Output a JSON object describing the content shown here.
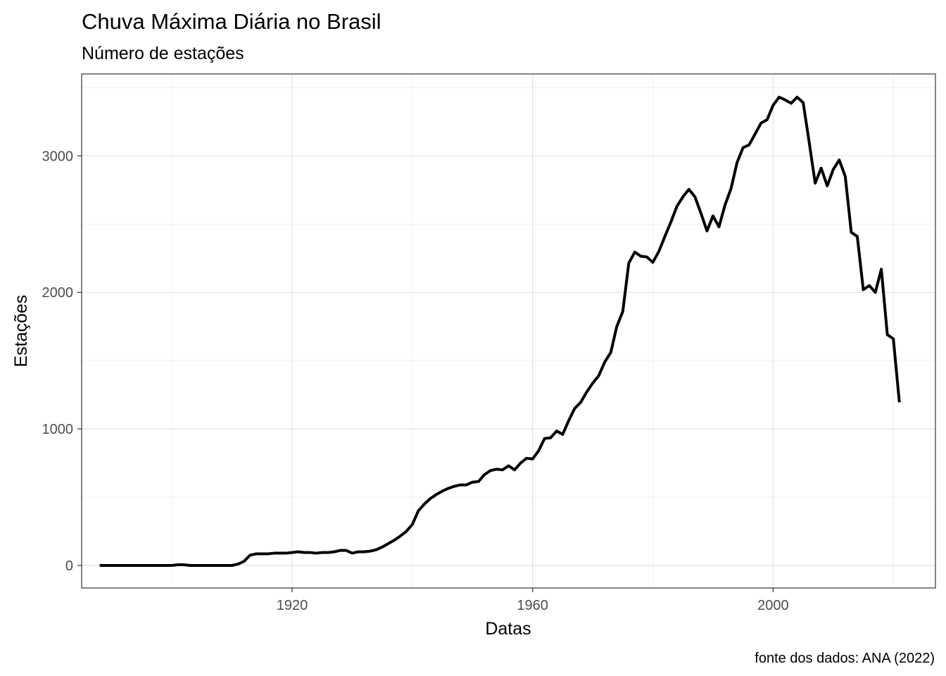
{
  "chart_data": {
    "type": "line",
    "title": "Chuva Máxima Diária no Brasil",
    "subtitle": "Número de estações",
    "xlabel": "Datas",
    "ylabel": "Estações",
    "caption": "fonte dos dados: ANA (2022)",
    "xlim": [
      1885,
      2027
    ],
    "ylim": [
      -165,
      3600
    ],
    "x_ticks": [
      1920,
      1960,
      2000
    ],
    "y_ticks": [
      0,
      1000,
      2000,
      3000
    ],
    "x_minor": [
      1900,
      1940,
      1980,
      2020
    ],
    "y_minor": [
      500,
      1500,
      2500,
      3500
    ],
    "grid": true,
    "line_color": "#000000",
    "series": [
      {
        "x": [
          1888,
          1890,
          1895,
          1900,
          1901,
          1902,
          1903,
          1905,
          1908,
          1910,
          1911,
          1912,
          1913,
          1914,
          1915,
          1916,
          1917,
          1918,
          1919,
          1920,
          1921,
          1922,
          1923,
          1924,
          1925,
          1926,
          1927,
          1928,
          1929,
          1930,
          1931,
          1932,
          1933,
          1934,
          1935,
          1936,
          1937,
          1938,
          1939,
          1940,
          1941,
          1942,
          1943,
          1944,
          1945,
          1946,
          1947,
          1948,
          1949,
          1950,
          1951,
          1952,
          1953,
          1954,
          1955,
          1956,
          1957,
          1958,
          1959,
          1960,
          1961,
          1962,
          1963,
          1964,
          1965,
          1966,
          1967,
          1968,
          1969,
          1970,
          1971,
          1972,
          1973,
          1974,
          1975,
          1976,
          1977,
          1978,
          1979,
          1980,
          1981,
          1982,
          1983,
          1984,
          1985,
          1986,
          1987,
          1988,
          1989,
          1990,
          1991,
          1992,
          1993,
          1994,
          1995,
          1996,
          1997,
          1998,
          1999,
          2000,
          2001,
          2002,
          2003,
          2004,
          2005,
          2006,
          2007,
          2008,
          2009,
          2010,
          2011,
          2012,
          2013,
          2014,
          2015,
          2016,
          2017,
          2018,
          2019,
          2020,
          2021
        ],
        "y": [
          0,
          0,
          0,
          0,
          5,
          5,
          0,
          0,
          0,
          0,
          10,
          30,
          75,
          85,
          85,
          85,
          90,
          90,
          90,
          95,
          100,
          95,
          95,
          90,
          95,
          95,
          100,
          110,
          110,
          90,
          100,
          100,
          105,
          115,
          135,
          160,
          185,
          215,
          250,
          300,
          400,
          450,
          490,
          520,
          545,
          565,
          580,
          590,
          590,
          610,
          615,
          665,
          695,
          705,
          700,
          730,
          700,
          750,
          785,
          780,
          840,
          930,
          935,
          985,
          960,
          1060,
          1150,
          1195,
          1270,
          1335,
          1390,
          1490,
          1560,
          1750,
          1860,
          2215,
          2295,
          2265,
          2260,
          2220,
          2300,
          2410,
          2515,
          2630,
          2700,
          2755,
          2700,
          2580,
          2450,
          2560,
          2480,
          2640,
          2760,
          2950,
          3060,
          3080,
          3160,
          3240,
          3265,
          3370,
          3430,
          3410,
          3385,
          3430,
          3390,
          3100,
          2800,
          2910,
          2780,
          2900,
          2970,
          2850,
          2440,
          2410,
          2020,
          2050,
          2000,
          2170,
          1690,
          1660,
          1195
        ]
      }
    ]
  }
}
